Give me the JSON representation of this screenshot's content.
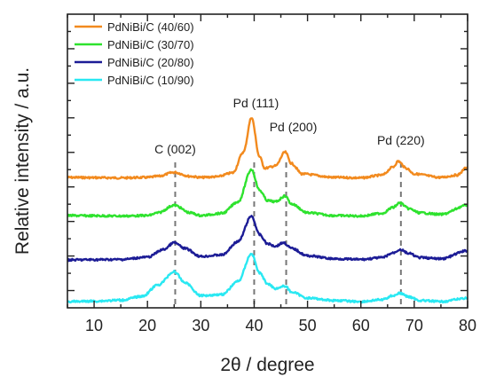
{
  "chart_data": {
    "type": "line",
    "xlabel": "2θ / degree",
    "ylabel": "Relative intensity / a.u.",
    "xlim": [
      5,
      80
    ],
    "xticks": [
      10,
      20,
      30,
      40,
      50,
      60,
      70,
      80
    ],
    "ytick_labels_shown": false,
    "grid": false,
    "legend_position": "top-left",
    "series": [
      {
        "name": "PdNiBi/C (40/60)",
        "color": "#f28a1e",
        "points": [
          [
            5,
            0.5
          ],
          [
            10,
            0.49
          ],
          [
            15,
            0.48
          ],
          [
            20,
            0.5
          ],
          [
            22,
            0.55
          ],
          [
            25,
            0.72
          ],
          [
            28,
            0.55
          ],
          [
            30,
            0.5
          ],
          [
            33,
            0.53
          ],
          [
            36,
            0.7
          ],
          [
            38,
            1.6
          ],
          [
            39.5,
            3.1
          ],
          [
            41,
            1.4
          ],
          [
            42,
            0.9
          ],
          [
            44,
            1.0
          ],
          [
            45.8,
            1.6
          ],
          [
            47,
            1.1
          ],
          [
            49,
            0.65
          ],
          [
            55,
            0.5
          ],
          [
            60,
            0.48
          ],
          [
            64,
            0.6
          ],
          [
            66,
            0.95
          ],
          [
            67,
            1.2
          ],
          [
            68.5,
            0.9
          ],
          [
            70,
            0.65
          ],
          [
            75,
            0.5
          ],
          [
            78,
            0.6
          ],
          [
            80,
            0.95
          ]
        ]
      },
      {
        "name": "PdNiBi/C (30/70)",
        "color": "#2ee22e",
        "points": [
          [
            5,
            0.5
          ],
          [
            10,
            0.49
          ],
          [
            15,
            0.48
          ],
          [
            20,
            0.5
          ],
          [
            22,
            0.62
          ],
          [
            25,
            0.95
          ],
          [
            28,
            0.62
          ],
          [
            30,
            0.5
          ],
          [
            34,
            0.6
          ],
          [
            37,
            1.1
          ],
          [
            39.5,
            2.5
          ],
          [
            41,
            1.6
          ],
          [
            42.5,
            1.15
          ],
          [
            44,
            1.1
          ],
          [
            45.8,
            1.35
          ],
          [
            47,
            1.0
          ],
          [
            50,
            0.62
          ],
          [
            55,
            0.5
          ],
          [
            60,
            0.48
          ],
          [
            64,
            0.6
          ],
          [
            66,
            0.85
          ],
          [
            67.3,
            1.05
          ],
          [
            69,
            0.8
          ],
          [
            71,
            0.62
          ],
          [
            75,
            0.55
          ],
          [
            80,
            0.95
          ]
        ]
      },
      {
        "name": "PdNiBi/C (20/80)",
        "color": "#1c1c96",
        "points": [
          [
            5,
            0.5
          ],
          [
            10,
            0.51
          ],
          [
            15,
            0.52
          ],
          [
            20,
            0.62
          ],
          [
            23,
            0.95
          ],
          [
            25,
            1.25
          ],
          [
            27,
            1.0
          ],
          [
            30,
            0.65
          ],
          [
            34,
            0.72
          ],
          [
            37,
            1.3
          ],
          [
            39.5,
            2.4
          ],
          [
            41,
            1.6
          ],
          [
            42.5,
            1.2
          ],
          [
            44,
            1.1
          ],
          [
            45.5,
            1.25
          ],
          [
            47,
            1.0
          ],
          [
            50,
            0.68
          ],
          [
            55,
            0.55
          ],
          [
            60,
            0.52
          ],
          [
            64,
            0.6
          ],
          [
            66,
            0.8
          ],
          [
            67.3,
            0.95
          ],
          [
            69,
            0.78
          ],
          [
            71,
            0.6
          ],
          [
            75,
            0.55
          ],
          [
            80,
            0.9
          ]
        ]
      },
      {
        "name": "PdNiBi/C (10/90)",
        "color": "#29e8f2",
        "points": [
          [
            5,
            0.5
          ],
          [
            10,
            0.52
          ],
          [
            15,
            0.56
          ],
          [
            19,
            0.72
          ],
          [
            22,
            1.2
          ],
          [
            25,
            1.75
          ],
          [
            27,
            1.3
          ],
          [
            30,
            0.75
          ],
          [
            34,
            0.8
          ],
          [
            37,
            1.35
          ],
          [
            39.5,
            2.5
          ],
          [
            41,
            1.7
          ],
          [
            42.5,
            1.25
          ],
          [
            44,
            1.05
          ],
          [
            45.8,
            1.15
          ],
          [
            47,
            0.9
          ],
          [
            50,
            0.65
          ],
          [
            55,
            0.55
          ],
          [
            60,
            0.5
          ],
          [
            64,
            0.58
          ],
          [
            66,
            0.75
          ],
          [
            67.3,
            0.85
          ],
          [
            69,
            0.7
          ],
          [
            71,
            0.55
          ],
          [
            75,
            0.5
          ],
          [
            80,
            0.65
          ]
        ]
      }
    ],
    "reference_lines": [
      {
        "x": 25.2,
        "label": "C (002)"
      },
      {
        "x": 40.0,
        "label": "Pd (111)"
      },
      {
        "x": 46.0,
        "label": "Pd (200)"
      },
      {
        "x": 67.5,
        "label": "Pd (220)"
      }
    ]
  }
}
